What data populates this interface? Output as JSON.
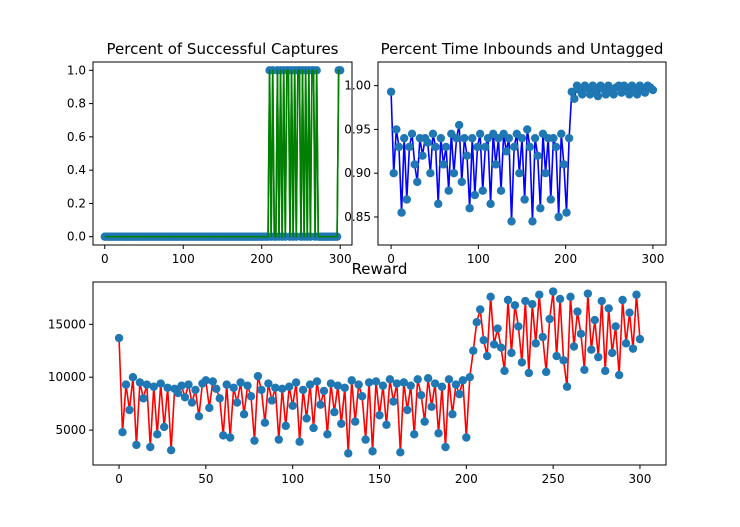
{
  "chart_data": [
    {
      "type": "scatter",
      "title": "Percent of Successful Captures",
      "xlim": [
        -15,
        315
      ],
      "ylim": [
        -0.05,
        1.05
      ],
      "xticks": [
        0,
        100,
        200,
        300
      ],
      "yticks": [
        0.0,
        0.2,
        0.4,
        0.6,
        0.8,
        1.0
      ],
      "ytick_labels": [
        "0.0",
        "0.2",
        "0.4",
        "0.6",
        "0.8",
        "1.0"
      ],
      "series": [
        {
          "line_color": "#008000",
          "marker_color": "#1f77b4",
          "x": [
            0,
            2,
            4,
            6,
            8,
            10,
            12,
            14,
            16,
            18,
            20,
            22,
            24,
            26,
            28,
            30,
            32,
            34,
            36,
            38,
            40,
            42,
            44,
            46,
            48,
            50,
            52,
            54,
            56,
            58,
            60,
            62,
            64,
            66,
            68,
            70,
            72,
            74,
            76,
            78,
            80,
            82,
            84,
            86,
            88,
            90,
            92,
            94,
            96,
            98,
            100,
            102,
            104,
            106,
            108,
            110,
            112,
            114,
            116,
            118,
            120,
            122,
            124,
            126,
            128,
            130,
            132,
            134,
            136,
            138,
            140,
            142,
            144,
            146,
            148,
            150,
            152,
            154,
            156,
            158,
            160,
            162,
            164,
            166,
            168,
            170,
            172,
            174,
            176,
            178,
            180,
            182,
            184,
            186,
            188,
            190,
            192,
            194,
            196,
            198,
            200,
            202,
            204,
            206,
            208,
            210,
            212,
            214,
            216,
            218,
            220,
            222,
            224,
            226,
            228,
            230,
            232,
            234,
            236,
            238,
            240,
            242,
            244,
            246,
            248,
            250,
            252,
            254,
            256,
            258,
            260,
            262,
            264,
            266,
            268,
            270,
            272,
            274,
            276,
            278,
            280,
            282,
            284,
            286,
            288,
            290,
            292,
            294,
            296,
            298,
            300
          ],
          "y": [
            0,
            0,
            0,
            0,
            0,
            0,
            0,
            0,
            0,
            0,
            0,
            0,
            0,
            0,
            0,
            0,
            0,
            0,
            0,
            0,
            0,
            0,
            0,
            0,
            0,
            0,
            0,
            0,
            0,
            0,
            0,
            0,
            0,
            0,
            0,
            0,
            0,
            0,
            0,
            0,
            0,
            0,
            0,
            0,
            0,
            0,
            0,
            0,
            0,
            0,
            0,
            0,
            0,
            0,
            0,
            0,
            0,
            0,
            0,
            0,
            0,
            0,
            0,
            0,
            0,
            0,
            0,
            0,
            0,
            0,
            0,
            0,
            0,
            0,
            0,
            0,
            0,
            0,
            0,
            0,
            0,
            0,
            0,
            0,
            0,
            0,
            0,
            0,
            0,
            0,
            0,
            0,
            0,
            0,
            0,
            0,
            0,
            0,
            0,
            0,
            0,
            0,
            0,
            0,
            0,
            1,
            0,
            1,
            0,
            0,
            1,
            0,
            1,
            0,
            1,
            0,
            1,
            1,
            0,
            1,
            0,
            1,
            0,
            1,
            1,
            0,
            1,
            0,
            1,
            0,
            1,
            0,
            1,
            1,
            0,
            1,
            0,
            0,
            0,
            0,
            0,
            0,
            0,
            0,
            0,
            0,
            0,
            0,
            0,
            1,
            1
          ]
        }
      ]
    },
    {
      "type": "scatter",
      "title": "Percent Time Inbounds and Untagged",
      "xlim": [
        -15,
        315
      ],
      "ylim": [
        0.818,
        1.027
      ],
      "xticks": [
        0,
        100,
        200,
        300
      ],
      "yticks": [
        0.85,
        0.9,
        0.95,
        1.0
      ],
      "ytick_labels": [
        "0.85",
        "0.90",
        "0.95",
        "1.00"
      ],
      "series": [
        {
          "line_color": "#0000ff",
          "marker_color": "#1f77b4",
          "x": [
            0,
            3,
            6,
            9,
            12,
            15,
            18,
            21,
            24,
            27,
            30,
            33,
            36,
            39,
            42,
            45,
            48,
            51,
            54,
            57,
            60,
            63,
            66,
            69,
            72,
            75,
            78,
            81,
            84,
            87,
            90,
            93,
            96,
            99,
            102,
            105,
            108,
            111,
            114,
            117,
            120,
            123,
            126,
            129,
            132,
            135,
            138,
            141,
            144,
            147,
            150,
            153,
            156,
            159,
            162,
            165,
            168,
            171,
            174,
            177,
            180,
            183,
            186,
            189,
            192,
            195,
            198,
            201,
            204,
            207,
            210,
            213,
            216,
            219,
            222,
            225,
            228,
            231,
            234,
            237,
            240,
            243,
            246,
            249,
            252,
            255,
            258,
            261,
            264,
            267,
            270,
            273,
            276,
            279,
            282,
            285,
            288,
            291,
            294,
            297,
            300
          ],
          "y": [
            0.993,
            0.9,
            0.95,
            0.93,
            0.855,
            0.94,
            0.87,
            0.93,
            0.945,
            0.91,
            0.89,
            0.94,
            0.92,
            0.94,
            0.935,
            0.9,
            0.945,
            0.93,
            0.865,
            0.94,
            0.91,
            0.93,
            0.88,
            0.945,
            0.9,
            0.94,
            0.955,
            0.89,
            0.94,
            0.92,
            0.86,
            0.94,
            0.875,
            0.93,
            0.945,
            0.88,
            0.93,
            0.94,
            0.865,
            0.945,
            0.91,
            0.94,
            0.88,
            0.945,
            0.925,
            0.94,
            0.845,
            0.93,
            0.945,
            0.9,
            0.94,
            0.87,
            0.95,
            0.93,
            0.845,
            0.94,
            0.92,
            0.86,
            0.945,
            0.9,
            0.94,
            0.87,
            0.94,
            0.93,
            0.85,
            0.945,
            0.91,
            0.855,
            0.94,
            0.993,
            0.985,
            1.0,
            0.995,
            0.99,
            1.0,
            0.997,
            0.99,
            1.0,
            0.995,
            0.988,
            1.0,
            0.996,
            0.99,
            1.0,
            0.995,
            0.99,
            0.998,
            1.0,
            0.992,
            1.0,
            0.995,
            0.99,
            1.0,
            0.996,
            0.99,
            1.0,
            0.995,
            0.992,
            1.0,
            0.998,
            0.995
          ]
        }
      ]
    },
    {
      "type": "scatter",
      "title": "Reward",
      "xlim": [
        -15,
        315
      ],
      "ylim": [
        1700,
        19000
      ],
      "xticks": [
        0,
        50,
        100,
        150,
        200,
        250,
        300
      ],
      "yticks": [
        5000,
        10000,
        15000
      ],
      "ytick_labels": [
        "5000",
        "10000",
        "15000"
      ],
      "series": [
        {
          "line_color": "#ff0000",
          "marker_color": "#1f77b4",
          "x": [
            0,
            2,
            4,
            6,
            8,
            10,
            12,
            14,
            16,
            18,
            20,
            22,
            24,
            26,
            28,
            30,
            32,
            34,
            36,
            38,
            40,
            42,
            44,
            46,
            48,
            50,
            52,
            54,
            56,
            58,
            60,
            62,
            64,
            66,
            68,
            70,
            72,
            74,
            76,
            78,
            80,
            82,
            84,
            86,
            88,
            90,
            92,
            94,
            96,
            98,
            100,
            102,
            104,
            106,
            108,
            110,
            112,
            114,
            116,
            118,
            120,
            122,
            124,
            126,
            128,
            130,
            132,
            134,
            136,
            138,
            140,
            142,
            144,
            146,
            148,
            150,
            152,
            154,
            156,
            158,
            160,
            162,
            164,
            166,
            168,
            170,
            172,
            174,
            176,
            178,
            180,
            182,
            184,
            186,
            188,
            190,
            192,
            194,
            196,
            198,
            200,
            202,
            204,
            206,
            208,
            210,
            212,
            214,
            216,
            218,
            220,
            222,
            224,
            226,
            228,
            230,
            232,
            234,
            236,
            238,
            240,
            242,
            244,
            246,
            248,
            250,
            252,
            254,
            256,
            258,
            260,
            262,
            264,
            266,
            268,
            270,
            272,
            274,
            276,
            278,
            280,
            282,
            284,
            286,
            288,
            290,
            292,
            294,
            296,
            298,
            300
          ],
          "y": [
            13700,
            4800,
            9300,
            6900,
            10000,
            3600,
            9500,
            8000,
            9300,
            3400,
            9100,
            4600,
            9400,
            5300,
            9000,
            3100,
            8900,
            8500,
            9200,
            8100,
            9300,
            7600,
            8800,
            6300,
            9400,
            9700,
            7100,
            9600,
            8900,
            8000,
            4500,
            9300,
            4300,
            9000,
            7600,
            9500,
            6500,
            9200,
            8200,
            4000,
            10100,
            8800,
            5700,
            9400,
            7800,
            9000,
            4100,
            8900,
            5400,
            9100,
            7300,
            9500,
            3900,
            8800,
            6100,
            9300,
            5200,
            9600,
            7400,
            8700,
            4600,
            9400,
            6700,
            9200,
            5600,
            9000,
            2800,
            9700,
            5800,
            9300,
            8200,
            4100,
            9500,
            3000,
            9600,
            6400,
            9200,
            5500,
            9800,
            7700,
            9400,
            2900,
            9500,
            6900,
            9200,
            4600,
            9800,
            8300,
            5800,
            9900,
            7200,
            9400,
            4700,
            9100,
            3400,
            9800,
            6500,
            9300,
            8400,
            9700,
            4300,
            10000,
            12500,
            15200,
            16400,
            13500,
            12000,
            17600,
            13100,
            14600,
            12800,
            10600,
            17300,
            12300,
            16800,
            14800,
            11400,
            17200,
            10400,
            16900,
            13200,
            17800,
            13800,
            10500,
            15500,
            18100,
            12000,
            17400,
            11600,
            9100,
            17600,
            12900,
            16200,
            14100,
            10700,
            17900,
            12600,
            15400,
            11900,
            17200,
            10600,
            16500,
            12300,
            14800,
            10200,
            17300,
            13200,
            16100,
            12700,
            17800,
            13600
          ]
        }
      ]
    }
  ]
}
